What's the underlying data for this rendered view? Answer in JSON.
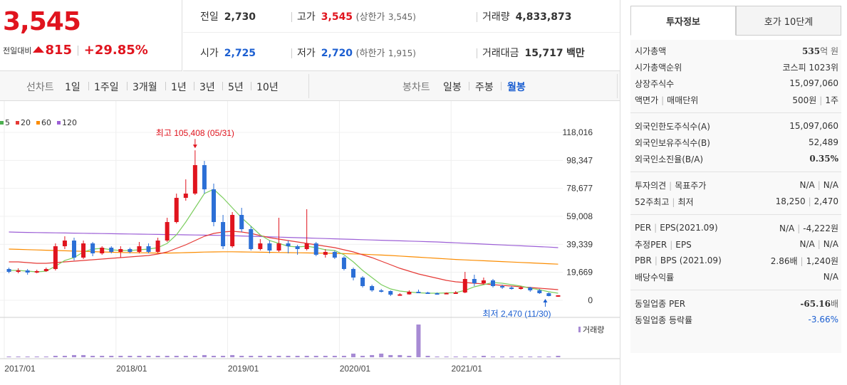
{
  "price": {
    "current": "3,545",
    "diff_label": "전일대비",
    "diff_amount": "815",
    "diff_percent": "+29.85%"
  },
  "stats": {
    "prev_label": "전일",
    "prev_value": "2,730",
    "high_label": "고가",
    "high_value": "3,545",
    "upper_label": "(상한가",
    "upper_value": "3,545)",
    "volume_label": "거래량",
    "volume_value": "4,833,873",
    "open_label": "시가",
    "open_value": "2,725",
    "low_label": "저가",
    "low_value": "2,720",
    "lower_label": "(하한가",
    "lower_value": "1,915)",
    "amount_label": "거래대금",
    "amount_value": "15,717",
    "amount_unit": "백만"
  },
  "toolbar": {
    "line_chart_label": "선차트",
    "ranges": [
      "1일",
      "1주일",
      "3개월",
      "1년",
      "3년",
      "5년",
      "10년"
    ],
    "candle_label": "봉차트",
    "candles": [
      "일봉",
      "주봉",
      "월봉"
    ],
    "active_candle": "월봉"
  },
  "legend": [
    {
      "label": "5",
      "color": "#4caf50"
    },
    {
      "label": "20",
      "color": "#e53935"
    },
    {
      "label": "60",
      "color": "#fb8c00"
    },
    {
      "label": "120",
      "color": "#9c5fd6"
    }
  ],
  "chart_data": {
    "type": "candlestick",
    "title": "",
    "y_ticks": [
      "118,016",
      "98,347",
      "78,677",
      "59,008",
      "39,339",
      "19,669",
      "0"
    ],
    "x_ticks": [
      "2017/01",
      "2018/01",
      "2019/01",
      "2020/01",
      "2021/01"
    ],
    "ylim": [
      0,
      118016
    ],
    "high_annotation": "최고 105,408 (05/31)",
    "low_annotation": "최저 2,470 (11/30)",
    "volume_label": "거래량",
    "up_color": "#e0141e",
    "down_color": "#2c6fd6",
    "candles": [
      {
        "x": 0,
        "o": 22000,
        "c": 20000,
        "h": 23000,
        "l": 19000
      },
      {
        "x": 1,
        "o": 20000,
        "c": 21000,
        "h": 22500,
        "l": 19000
      },
      {
        "x": 2,
        "o": 21000,
        "c": 19500,
        "h": 22000,
        "l": 18000
      },
      {
        "x": 3,
        "o": 19500,
        "c": 20500,
        "h": 21500,
        "l": 19000
      },
      {
        "x": 4,
        "o": 20500,
        "c": 22000,
        "h": 23000,
        "l": 20000
      },
      {
        "x": 5,
        "o": 22000,
        "c": 38000,
        "h": 40000,
        "l": 21000
      },
      {
        "x": 6,
        "o": 38000,
        "c": 42000,
        "h": 45000,
        "l": 36000
      },
      {
        "x": 7,
        "o": 42000,
        "c": 30000,
        "h": 44000,
        "l": 28000
      },
      {
        "x": 8,
        "o": 30000,
        "c": 40000,
        "h": 42000,
        "l": 29000
      },
      {
        "x": 9,
        "o": 40000,
        "c": 33000,
        "h": 41000,
        "l": 31000
      },
      {
        "x": 10,
        "o": 33000,
        "c": 37000,
        "h": 38000,
        "l": 32000
      },
      {
        "x": 11,
        "o": 37000,
        "c": 34000,
        "h": 38000,
        "l": 33000
      },
      {
        "x": 12,
        "o": 34000,
        "c": 36000,
        "h": 38000,
        "l": 30000
      },
      {
        "x": 13,
        "o": 36000,
        "c": 34000,
        "h": 37000,
        "l": 33000
      },
      {
        "x": 14,
        "o": 34000,
        "c": 38000,
        "h": 41000,
        "l": 33000
      },
      {
        "x": 15,
        "o": 38000,
        "c": 34000,
        "h": 40000,
        "l": 33000
      },
      {
        "x": 16,
        "o": 34000,
        "c": 42000,
        "h": 44000,
        "l": 33000
      },
      {
        "x": 17,
        "o": 42000,
        "c": 55000,
        "h": 58000,
        "l": 41000
      },
      {
        "x": 18,
        "o": 55000,
        "c": 72000,
        "h": 75000,
        "l": 54000
      },
      {
        "x": 19,
        "o": 72000,
        "c": 75000,
        "h": 85000,
        "l": 70000
      },
      {
        "x": 20,
        "o": 75000,
        "c": 95000,
        "h": 105408,
        "l": 74000
      },
      {
        "x": 21,
        "o": 95000,
        "c": 78000,
        "h": 98000,
        "l": 75000
      },
      {
        "x": 22,
        "o": 78000,
        "c": 55000,
        "h": 82000,
        "l": 52000
      },
      {
        "x": 23,
        "o": 55000,
        "c": 38000,
        "h": 60000,
        "l": 36000
      },
      {
        "x": 24,
        "o": 38000,
        "c": 60000,
        "h": 62000,
        "l": 37000
      },
      {
        "x": 25,
        "o": 60000,
        "c": 50000,
        "h": 65000,
        "l": 48000
      },
      {
        "x": 26,
        "o": 50000,
        "c": 36000,
        "h": 52000,
        "l": 35000
      },
      {
        "x": 27,
        "o": 36000,
        "c": 40000,
        "h": 43000,
        "l": 35000
      },
      {
        "x": 28,
        "o": 40000,
        "c": 35000,
        "h": 42000,
        "l": 33000
      },
      {
        "x": 29,
        "o": 35000,
        "c": 40000,
        "h": 58000,
        "l": 34000
      },
      {
        "x": 30,
        "o": 40000,
        "c": 38000,
        "h": 42000,
        "l": 33000
      },
      {
        "x": 31,
        "o": 38000,
        "c": 36000,
        "h": 39000,
        "l": 32000
      },
      {
        "x": 32,
        "o": 36000,
        "c": 40000,
        "h": 64000,
        "l": 35000
      },
      {
        "x": 33,
        "o": 40000,
        "c": 32000,
        "h": 41000,
        "l": 31000
      },
      {
        "x": 34,
        "o": 32000,
        "c": 34000,
        "h": 36000,
        "l": 30000
      },
      {
        "x": 35,
        "o": 34000,
        "c": 30000,
        "h": 35000,
        "l": 29000
      },
      {
        "x": 36,
        "o": 30000,
        "c": 22000,
        "h": 31000,
        "l": 21000
      },
      {
        "x": 37,
        "o": 22000,
        "c": 16000,
        "h": 23000,
        "l": 14000
      },
      {
        "x": 38,
        "o": 16000,
        "c": 10000,
        "h": 17000,
        "l": 9000
      },
      {
        "x": 39,
        "o": 10000,
        "c": 7000,
        "h": 11000,
        "l": 6000
      },
      {
        "x": 40,
        "o": 7000,
        "c": 6500,
        "h": 8000,
        "l": 5500
      },
      {
        "x": 41,
        "o": 6500,
        "c": 4000,
        "h": 7000,
        "l": 3000
      },
      {
        "x": 42,
        "o": 4000,
        "c": 4200,
        "h": 5000,
        "l": 3500
      },
      {
        "x": 43,
        "o": 4200,
        "c": 6000,
        "h": 7000,
        "l": 4000
      },
      {
        "x": 44,
        "o": 6000,
        "c": 5500,
        "h": 7500,
        "l": 5000
      },
      {
        "x": 45,
        "o": 5500,
        "c": 5000,
        "h": 6000,
        "l": 4500
      },
      {
        "x": 46,
        "o": 5000,
        "c": 4800,
        "h": 5500,
        "l": 4200
      },
      {
        "x": 47,
        "o": 4800,
        "c": 5200,
        "h": 5500,
        "l": 4500
      },
      {
        "x": 48,
        "o": 5200,
        "c": 5500,
        "h": 6500,
        "l": 5000
      },
      {
        "x": 49,
        "o": 5500,
        "c": 15000,
        "h": 20000,
        "l": 5000
      },
      {
        "x": 50,
        "o": 15000,
        "c": 12000,
        "h": 18000,
        "l": 10000
      },
      {
        "x": 51,
        "o": 12000,
        "c": 14000,
        "h": 16000,
        "l": 11000
      },
      {
        "x": 52,
        "o": 14000,
        "c": 10000,
        "h": 15000,
        "l": 9000
      },
      {
        "x": 53,
        "o": 10000,
        "c": 9000,
        "h": 11000,
        "l": 8000
      },
      {
        "x": 54,
        "o": 9000,
        "c": 8500,
        "h": 10000,
        "l": 7500
      },
      {
        "x": 55,
        "o": 8500,
        "c": 9000,
        "h": 10000,
        "l": 7500
      },
      {
        "x": 56,
        "o": 9000,
        "c": 7000,
        "h": 9500,
        "l": 6000
      },
      {
        "x": 57,
        "o": 7000,
        "c": 5000,
        "h": 8000,
        "l": 4500
      },
      {
        "x": 58,
        "o": 5000,
        "c": 3000,
        "h": 5500,
        "l": 2800
      },
      {
        "x": 59,
        "o": 3000,
        "c": 3545,
        "h": 3545,
        "l": 2470
      }
    ],
    "ma5": [
      21000,
      21000,
      20500,
      20000,
      20500,
      24000,
      28000,
      30000,
      34000,
      36000,
      36500,
      35500,
      35000,
      35000,
      35500,
      36000,
      37000,
      40000,
      46000,
      55000,
      65000,
      75000,
      78000,
      72000,
      65000,
      58000,
      52000,
      46000,
      42000,
      40000,
      38000,
      37500,
      38000,
      37000,
      35500,
      35000,
      32000,
      27000,
      21000,
      16000,
      11000,
      8000,
      6500,
      5800,
      5300,
      5000,
      5000,
      5200,
      5400,
      7000,
      9500,
      11000,
      12500,
      12000,
      11000,
      10000,
      8500,
      7500,
      6000,
      5000
    ],
    "ma20": [
      27000,
      27000,
      26500,
      26000,
      26000,
      26500,
      27000,
      27500,
      28000,
      28500,
      29000,
      29500,
      30000,
      30500,
      31000,
      31500,
      32500,
      34000,
      36500,
      39000,
      42000,
      45000,
      47000,
      48000,
      48500,
      48000,
      47000,
      45500,
      44000,
      43000,
      42000,
      41000,
      40000,
      39000,
      38000,
      37000,
      35500,
      34000,
      32000,
      30000,
      27500,
      25000,
      22500,
      20500,
      18500,
      17000,
      15500,
      14000,
      13000,
      12500,
      12000,
      11500,
      11000,
      10500,
      10000,
      9500,
      9000,
      8500,
      8000,
      7500
    ],
    "ma60": [
      36000,
      35800,
      35600,
      35400,
      35200,
      35000,
      34800,
      34600,
      34400,
      34200,
      34000,
      33800,
      33600,
      33500,
      33400,
      33300,
      33200,
      33200,
      33300,
      33500,
      33700,
      33900,
      34000,
      34100,
      34100,
      34000,
      33900,
      33800,
      33700,
      33600,
      33500,
      33400,
      33300,
      33200,
      33100,
      33000,
      32800,
      32600,
      32400,
      32100,
      31800,
      31500,
      31100,
      30700,
      30300,
      29900,
      29500,
      29100,
      28700,
      28400,
      28100,
      27800,
      27500,
      27200,
      26900,
      26600,
      26300,
      26000,
      25700,
      25400
    ],
    "ma120": [
      48000,
      47800,
      47700,
      47600,
      47500,
      47400,
      47300,
      47200,
      47100,
      47000,
      46900,
      46800,
      46700,
      46600,
      46500,
      46400,
      46300,
      46200,
      46100,
      46000,
      45900,
      45800,
      45700,
      45600,
      45400,
      45200,
      45000,
      44800,
      44600,
      44400,
      44200,
      44000,
      43800,
      43600,
      43400,
      43200,
      43000,
      42800,
      42600,
      42400,
      42200,
      42000,
      41800,
      41600,
      41400,
      41200,
      41000,
      40700,
      40400,
      40100,
      39800,
      39500,
      39200,
      38900,
      38600,
      38300,
      38000,
      37700,
      37400,
      37000
    ],
    "volume": [
      1,
      1,
      1,
      1,
      1,
      2,
      2,
      3,
      3,
      2,
      2,
      2,
      2,
      2,
      2,
      2,
      2,
      2,
      2,
      2,
      2,
      3,
      2,
      2,
      3,
      2,
      2,
      2,
      2,
      2,
      2,
      2,
      2,
      2,
      2,
      2,
      2,
      5,
      2,
      3,
      5,
      3,
      3,
      2,
      45,
      2,
      1,
      1,
      1,
      1,
      1,
      2,
      1,
      1,
      1,
      1,
      1,
      1,
      1,
      2
    ]
  },
  "right": {
    "tabs": [
      "투자정보",
      "호가 10단계"
    ],
    "group1": [
      {
        "k": "시가총액",
        "v_bold": "535",
        "v_unit": "억 원"
      },
      {
        "k": "시가총액순위",
        "v": "코스피 1023위"
      },
      {
        "k": "상장주식수",
        "v": "15,097,060"
      },
      {
        "k": "액면가",
        "k2": "매매단위",
        "v": "500원",
        "v2": "1주"
      }
    ],
    "group2": [
      {
        "k": "외국인한도주식수(A)",
        "v": "15,097,060"
      },
      {
        "k": "외국인보유주식수(B)",
        "v": "52,489"
      },
      {
        "k": "외국인소진율(B/A)",
        "v_bold": "0.35%"
      }
    ],
    "group3": [
      {
        "k": "투자의견",
        "k2": "목표주가",
        "v": "N/A",
        "v2": "N/A"
      },
      {
        "k": "52주최고",
        "k2": "최저",
        "v": "18,250",
        "v2": "2,470"
      }
    ],
    "group4": [
      {
        "k": "PER",
        "k2": "EPS(2021.09)",
        "v": "N/A",
        "v2": "-4,222원"
      },
      {
        "k": "추정PER",
        "k2": "EPS",
        "v": "N/A",
        "v2": "N/A"
      },
      {
        "k": "PBR",
        "k2": "BPS (2021.09)",
        "v": "2.86배",
        "v2": "1,240원"
      },
      {
        "k": "배당수익률",
        "v": "N/A"
      }
    ],
    "group5": [
      {
        "k": "동일업종 PER",
        "v_bold": "-65.16",
        "v_unit": "배"
      },
      {
        "k": "동일업종 등락률",
        "v": "-3.66%"
      }
    ]
  }
}
